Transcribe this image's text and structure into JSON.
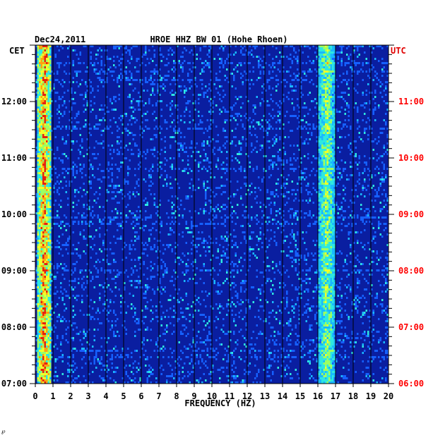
{
  "header": {
    "date": "Dec24,2011",
    "station": "HROE HHZ BW 01 (Hohe Rhoen)"
  },
  "footer_mark": "℘",
  "chart_data": {
    "type": "heatmap",
    "title": "HROE HHZ BW 01 (Hohe Rhoen)",
    "date": "Dec24,2011",
    "xlabel": "FREQUENCY (HZ)",
    "xlim": [
      0,
      20
    ],
    "x_ticks": [
      "0",
      "1",
      "2",
      "3",
      "4",
      "5",
      "6",
      "7",
      "8",
      "9",
      "10",
      "11",
      "12",
      "13",
      "14",
      "15",
      "16",
      "17",
      "18",
      "19",
      "20"
    ],
    "left_axis": {
      "label": "CET",
      "ticks": [
        "07:00",
        "08:00",
        "09:00",
        "10:00",
        "11:00",
        "12:00"
      ],
      "hours": [
        7,
        8,
        9,
        10,
        11,
        12
      ]
    },
    "right_axis": {
      "label": "UTC",
      "ticks": [
        "06:00",
        "07:00",
        "08:00",
        "09:00",
        "10:00",
        "11:00"
      ],
      "hours": [
        6,
        7,
        8,
        9,
        10,
        11
      ]
    },
    "time_range_cet": [
      7.0,
      13.0
    ],
    "grid": true,
    "colors": {
      "background": "#0a1ea0",
      "frame": "#000000",
      "utc_text": "#ff0000"
    },
    "energy_bands": [
      {
        "f_low": 0.1,
        "f_high": 0.9,
        "level": "high"
      },
      {
        "f_low": 16.0,
        "f_high": 17.0,
        "level": "medium"
      }
    ]
  }
}
